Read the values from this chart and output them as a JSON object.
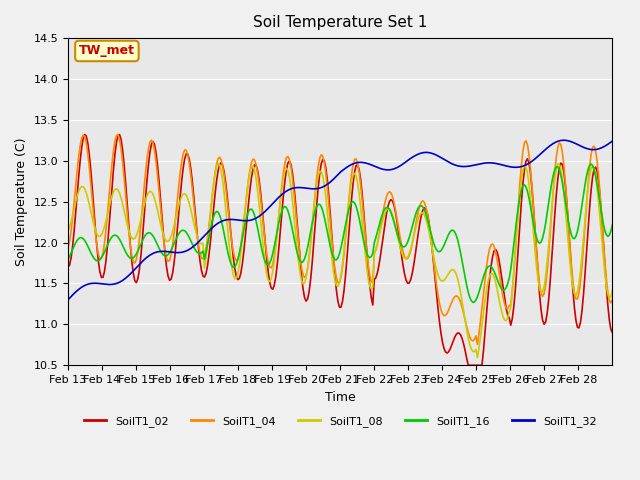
{
  "title": "Soil Temperature Set 1",
  "xlabel": "Time",
  "ylabel": "Soil Temperature (C)",
  "ylim": [
    10.5,
    14.5
  ],
  "annotation": "TW_met",
  "series_colors": {
    "SoilT1_02": "#cc0000",
    "SoilT1_04": "#ff8800",
    "SoilT1_08": "#cccc00",
    "SoilT1_16": "#00cc00",
    "SoilT1_32": "#0000cc"
  },
  "x_tick_labels": [
    "Feb 13",
    "Feb 14",
    "Feb 15",
    "Feb 16",
    "Feb 17",
    "Feb 18",
    "Feb 19",
    "Feb 20",
    "Feb 21",
    "Feb 22",
    "Feb 23",
    "Feb 24",
    "Feb 25",
    "Feb 26",
    "Feb 27",
    "Feb 28"
  ],
  "x_tick_positions": [
    0,
    1,
    2,
    3,
    4,
    5,
    6,
    7,
    8,
    9,
    10,
    11,
    12,
    13,
    14,
    15
  ],
  "y_ticks": [
    10.5,
    11.0,
    11.5,
    12.0,
    12.5,
    13.0,
    13.5,
    14.0,
    14.5
  ],
  "n_points": 360,
  "days": 16
}
